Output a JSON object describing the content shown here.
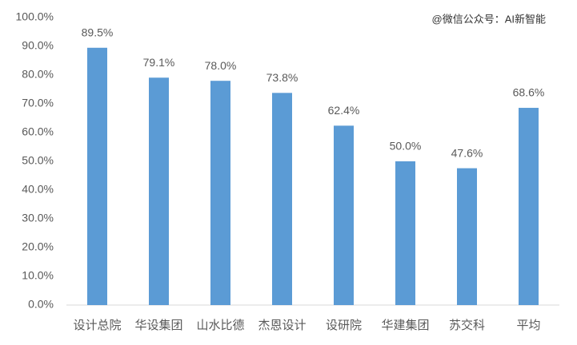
{
  "chart_data": {
    "type": "bar",
    "annotation": "@微信公众号：AI新智能",
    "categories": [
      "设计总院",
      "华设集团",
      "山水比德",
      "杰恩设计",
      "设研院",
      "华建集团",
      "苏交科",
      "平均"
    ],
    "values": [
      89.5,
      79.1,
      78.0,
      73.8,
      62.4,
      50.0,
      47.6,
      68.6
    ],
    "value_labels": [
      "89.5%",
      "79.1%",
      "78.0%",
      "73.8%",
      "62.4%",
      "50.0%",
      "47.6%",
      "68.6%"
    ],
    "color": "#5b9bd5",
    "ylim": [
      0,
      100
    ],
    "yticks": [
      {
        "value": 0,
        "label": "0.0%"
      },
      {
        "value": 10,
        "label": "10.0%"
      },
      {
        "value": 20,
        "label": "20.0%"
      },
      {
        "value": 30,
        "label": "30.0%"
      },
      {
        "value": 40,
        "label": "40.0%"
      },
      {
        "value": 50,
        "label": "50.0%"
      },
      {
        "value": 60,
        "label": "60.0%"
      },
      {
        "value": 70,
        "label": "70.0%"
      },
      {
        "value": 80,
        "label": "80.0%"
      },
      {
        "value": 90,
        "label": "90.0%"
      },
      {
        "value": 100,
        "label": "100.0%"
      }
    ],
    "grid": false
  }
}
